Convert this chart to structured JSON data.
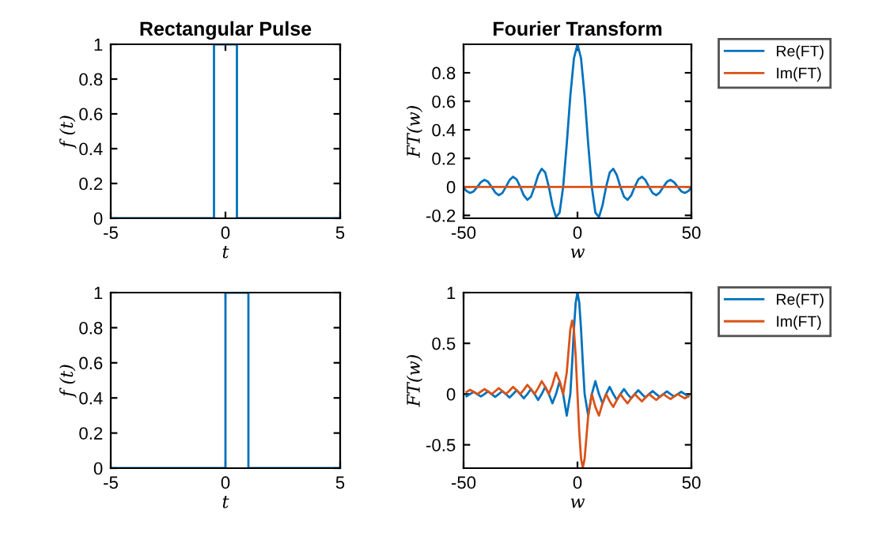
{
  "chart_data": [
    {
      "type": "line",
      "title": "Rectangular Pulse",
      "xlabel": "t",
      "ylabel": "f (t)",
      "xlim": [
        -5,
        5
      ],
      "xticks": [
        -5,
        0,
        5
      ],
      "ylim": [
        0,
        1
      ],
      "yticks": [
        0,
        0.2,
        0.4,
        0.6,
        0.8,
        1
      ],
      "grid": false,
      "legend": false,
      "series": [
        {
          "color": "#0072bd",
          "x": [
            -5,
            -0.5,
            -0.5,
            0.5,
            0.5,
            5
          ],
          "values": [
            0,
            0,
            1,
            1,
            0,
            0
          ]
        }
      ]
    },
    {
      "type": "line",
      "title": "Fourier Transform",
      "xlabel": "w",
      "ylabel": "FT(w)",
      "xlim": [
        -50,
        50
      ],
      "xticks": [
        -50,
        0,
        50
      ],
      "ylim": [
        -0.22,
        1
      ],
      "yticks": [
        -0.2,
        0,
        0.2,
        0.4,
        0.6,
        0.8
      ],
      "grid": false,
      "legend": "top right",
      "series": [
        {
          "name": "Re(FT)",
          "color": "#0072bd",
          "x": [
            -50,
            -48.695,
            -47.124,
            -45.553,
            -43.982,
            -42.412,
            -40.841,
            -39.27,
            -37.699,
            -36.128,
            -34.558,
            -32.987,
            -31.416,
            -29.845,
            -28.274,
            -26.704,
            -25.133,
            -23.562,
            -21.991,
            -20.42,
            -18.85,
            -17.279,
            -15.708,
            -14.137,
            -12.566,
            -10.996,
            -9.425,
            -7.854,
            -6.283,
            -4.712,
            -3.142,
            -1.571,
            0,
            1.571,
            3.142,
            4.712,
            6.283,
            7.854,
            9.425,
            10.996,
            12.566,
            14.137,
            15.708,
            17.279,
            18.85,
            20.42,
            21.991,
            23.562,
            25.133,
            26.704,
            28.274,
            29.845,
            31.416,
            32.987,
            34.558,
            36.128,
            37.699,
            39.27,
            40.841,
            42.412,
            43.982,
            45.553,
            47.124,
            48.695,
            50
          ],
          "values": [
            -0.005,
            -0.029,
            -0.042,
            -0.031,
            0,
            0.033,
            0.049,
            0.036,
            0,
            -0.039,
            -0.058,
            -0.043,
            0,
            0.047,
            0.071,
            0.053,
            0,
            -0.06,
            -0.091,
            -0.069,
            0,
            0.082,
            0.127,
            0.1,
            0,
            -0.129,
            -0.212,
            -0.18,
            0,
            0.3,
            0.637,
            0.9,
            1,
            0.9,
            0.637,
            0.3,
            0,
            -0.18,
            -0.212,
            -0.129,
            0,
            0.1,
            0.127,
            0.082,
            0,
            -0.069,
            -0.091,
            -0.06,
            0,
            0.053,
            0.071,
            0.047,
            0,
            -0.043,
            -0.058,
            -0.039,
            0,
            0.036,
            0.049,
            0.033,
            0,
            -0.031,
            -0.042,
            -0.029,
            -0.005
          ]
        },
        {
          "name": "Im(FT)",
          "color": "#d95319",
          "x": [
            -50,
            50
          ],
          "values": [
            0,
            0
          ]
        }
      ]
    },
    {
      "type": "line",
      "xlabel": "t",
      "ylabel": "f (t)",
      "xlim": [
        -5,
        5
      ],
      "xticks": [
        -5,
        0,
        5
      ],
      "ylim": [
        0,
        1
      ],
      "yticks": [
        0,
        0.2,
        0.4,
        0.6,
        0.8,
        1
      ],
      "grid": false,
      "legend": false,
      "series": [
        {
          "color": "#0072bd",
          "x": [
            -5,
            0,
            0,
            1,
            1,
            5
          ],
          "values": [
            0,
            0,
            1,
            1,
            0,
            0
          ]
        }
      ]
    },
    {
      "type": "line",
      "xlabel": "w",
      "ylabel": "FT(w)",
      "xlim": [
        -50,
        50
      ],
      "xticks": [
        -50,
        0,
        50
      ],
      "ylim": [
        -0.73,
        1
      ],
      "yticks": [
        -0.5,
        0,
        0.5,
        1
      ],
      "grid": false,
      "legend": "top right",
      "series": [
        {
          "name": "Re(FT)",
          "color": "#0072bd",
          "x": [
            -48.695,
            -47.124,
            -45.553,
            -43.982,
            -42.412,
            -40.841,
            -39.27,
            -37.699,
            -36.128,
            -34.558,
            -32.987,
            -31.416,
            -29.845,
            -28.274,
            -26.704,
            -25.133,
            -23.562,
            -21.991,
            -20.42,
            -18.85,
            -17.279,
            -15.708,
            -14.137,
            -12.566,
            -10.996,
            -9.425,
            -7.854,
            -6.283,
            -4.712,
            -3.142,
            -2.33,
            -1.571,
            -0.785,
            0,
            0.785,
            1.571,
            2.33,
            3.142,
            4.712,
            6.283,
            7.854,
            9.425,
            10.996,
            12.566,
            14.137,
            15.708,
            17.279,
            18.85,
            20.42,
            21.991,
            23.562,
            25.133,
            26.704,
            28.274,
            29.845,
            31.416,
            32.987,
            34.558,
            36.128,
            37.699,
            39.27,
            40.841,
            42.412,
            43.982,
            45.553,
            47.124,
            48.695
          ],
          "values": [
            -0.021,
            0,
            0.022,
            0,
            -0.024,
            0,
            0.026,
            0,
            -0.028,
            0,
            0.03,
            0,
            -0.034,
            0,
            0.037,
            0,
            -0.042,
            0,
            0.049,
            0,
            -0.058,
            0,
            0.071,
            0,
            -0.091,
            0,
            0.127,
            0,
            -0.212,
            0,
            0.311,
            0.637,
            0.9,
            1,
            0.9,
            0.637,
            0.311,
            0,
            -0.212,
            0,
            0.127,
            0,
            -0.091,
            0,
            0.071,
            0,
            -0.058,
            0,
            0.049,
            0,
            -0.042,
            0,
            0.037,
            0,
            -0.034,
            0,
            0.03,
            0,
            -0.028,
            0,
            0.026,
            0,
            -0.024,
            0,
            0.022,
            0,
            -0.021
          ]
        },
        {
          "name": "Im(FT)",
          "color": "#d95319",
          "x": [
            -48.695,
            -47.124,
            -45.553,
            -43.982,
            -42.412,
            -40.841,
            -39.27,
            -37.699,
            -36.128,
            -34.558,
            -32.987,
            -31.416,
            -29.845,
            -28.274,
            -26.704,
            -25.133,
            -23.562,
            -21.991,
            -20.42,
            -18.85,
            -17.279,
            -15.708,
            -14.137,
            -12.566,
            -10.996,
            -9.425,
            -7.854,
            -6.283,
            -4.712,
            -3.142,
            -2.33,
            -1.571,
            -0.785,
            0,
            0.785,
            1.571,
            2.33,
            3.142,
            4.712,
            6.283,
            7.854,
            9.425,
            10.996,
            12.566,
            14.137,
            15.708,
            17.279,
            18.85,
            20.42,
            21.991,
            23.562,
            25.133,
            26.704,
            28.274,
            29.845,
            31.416,
            32.987,
            34.558,
            36.128,
            37.699,
            39.27,
            40.841,
            42.412,
            43.982,
            45.553,
            47.124,
            48.695
          ],
          "values": [
            0.021,
            0.042,
            0.022,
            0,
            0.024,
            0.049,
            0.026,
            0,
            0.028,
            0.058,
            0.03,
            0,
            0.034,
            0.071,
            0.037,
            0,
            0.042,
            0.091,
            0.049,
            0,
            0.058,
            0.127,
            0.071,
            0,
            0.091,
            0.212,
            0.127,
            0,
            0.212,
            0.637,
            0.725,
            0.637,
            0.373,
            0,
            -0.373,
            -0.637,
            -0.725,
            -0.637,
            -0.212,
            0,
            -0.127,
            -0.212,
            -0.091,
            0,
            -0.071,
            -0.127,
            -0.058,
            0,
            -0.049,
            -0.091,
            -0.042,
            0,
            -0.037,
            -0.071,
            -0.034,
            0,
            -0.03,
            -0.058,
            -0.028,
            0,
            -0.026,
            -0.049,
            -0.024,
            0,
            -0.022,
            -0.042,
            -0.021
          ]
        }
      ]
    }
  ]
}
